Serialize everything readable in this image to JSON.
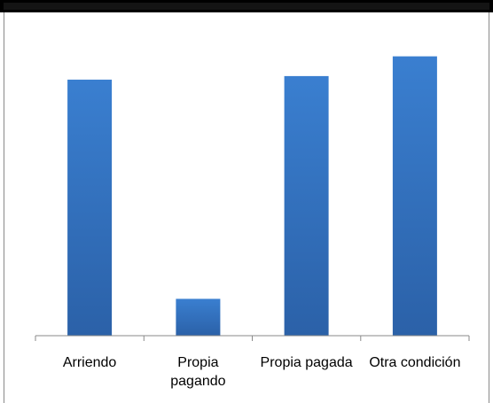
{
  "chart_data": {
    "type": "bar",
    "categories": [
      [
        "Arriendo"
      ],
      [
        "Propia",
        "pagando"
      ],
      [
        "Propia pagada"
      ],
      [
        "Otra condición"
      ]
    ],
    "values": [
      28.5,
      4.1,
      28.9,
      31.1
    ],
    "ylim": [
      0,
      35
    ],
    "grid": false,
    "legend": "none",
    "bar_color_top": "#3a7fd0",
    "bar_color_bottom": "#2b61a8",
    "axis_color": "#8a8a8a"
  }
}
